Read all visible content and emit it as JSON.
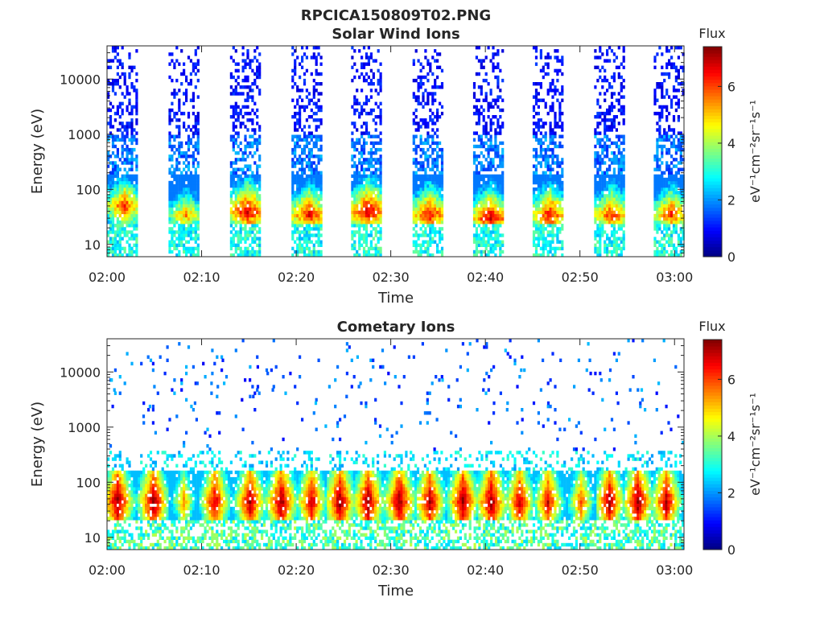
{
  "figure_title": "RPCICA150809T02.PNG",
  "colorbar": {
    "label": "Flux",
    "unit_label": "eV⁻¹cm⁻²sr⁻¹s⁻¹",
    "ticks": [
      "0",
      "2",
      "4",
      "6"
    ],
    "range": [
      0,
      7.4
    ]
  },
  "chart_data": [
    {
      "type": "heatmap",
      "title": "Solar Wind Ions",
      "xlabel": "Time",
      "ylabel": "Energy (eV)",
      "x_ticks": [
        "02:00",
        "02:10",
        "02:20",
        "02:30",
        "02:40",
        "02:50",
        "03:00"
      ],
      "y_ticks": [
        "10",
        "100",
        "1000",
        "10000"
      ],
      "y_scale": "log",
      "ylim": [
        6,
        40000
      ],
      "xlim": [
        "02:00",
        "03:01"
      ],
      "colorscale": "jet",
      "sweep_start_minutes": [
        0,
        6.5,
        13,
        19.5,
        25.8,
        32.3,
        38.7,
        45,
        51.5,
        57.8
      ],
      "sweep_duration_minutes": 3.2,
      "peak_energy_eV": [
        50,
        35,
        40,
        35,
        40,
        35,
        30,
        35,
        35,
        35
      ],
      "peak_flux": [
        6.2,
        5.5,
        6.8,
        6.5,
        6.9,
        6.5,
        6.8,
        6.5,
        6.3,
        6.2
      ]
    },
    {
      "type": "heatmap",
      "title": "Cometary Ions",
      "xlabel": "Time",
      "ylabel": "Energy (eV)",
      "x_ticks": [
        "02:00",
        "02:10",
        "02:20",
        "02:30",
        "02:40",
        "02:50",
        "03:00"
      ],
      "y_ticks": [
        "10",
        "100",
        "1000",
        "10000"
      ],
      "y_scale": "log",
      "ylim": [
        6,
        40000
      ],
      "xlim": [
        "02:00",
        "03:01"
      ],
      "colorscale": "jet",
      "burst_center_minutes": [
        1,
        4.8,
        8,
        11.3,
        15,
        18.3,
        21.5,
        24.5,
        27.5,
        30.8,
        34,
        37.5,
        40.5,
        43.5,
        46.5,
        50,
        53,
        56,
        59
      ],
      "burst_peak_flux": [
        7.4,
        7.4,
        5.5,
        7.0,
        7.2,
        7.4,
        7.0,
        7.4,
        7.4,
        7.4,
        7.2,
        7.4,
        7.4,
        7.0,
        6.8,
        6.0,
        7.2,
        7.4,
        7.2
      ]
    }
  ]
}
